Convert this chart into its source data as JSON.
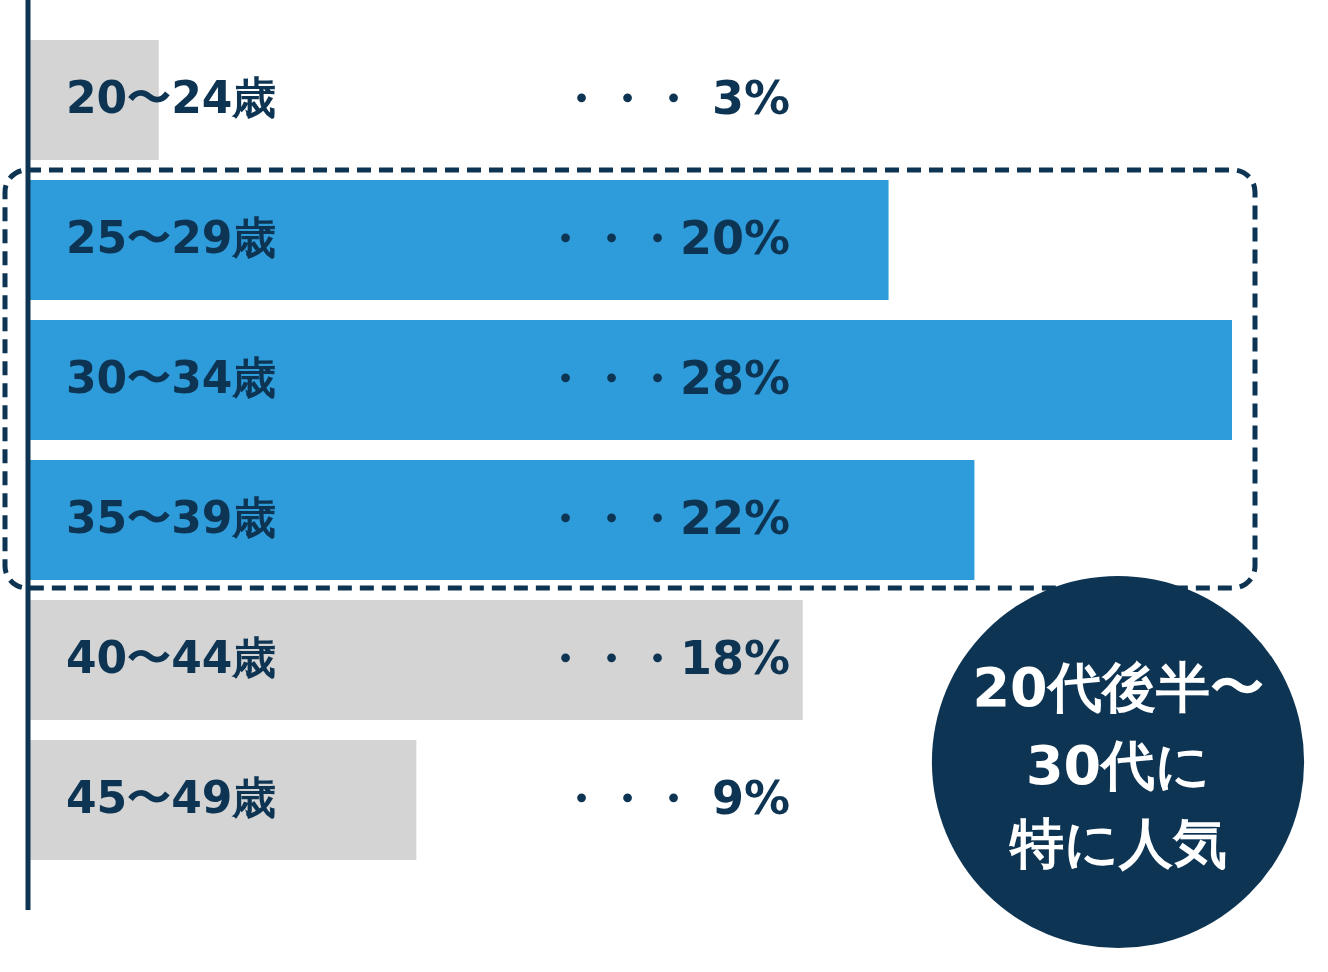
{
  "chart_data": {
    "type": "bar",
    "orientation": "horizontal",
    "categories": [
      "20〜24歳",
      "25〜29歳",
      "30〜34歳",
      "35〜39歳",
      "40〜44歳",
      "45〜49歳"
    ],
    "values": [
      3,
      20,
      28,
      22,
      18,
      9
    ],
    "colors": [
      "#d4d4d4",
      "#2e9cdb",
      "#2e9cdb",
      "#2e9cdb",
      "#d4d4d4",
      "#d4d4d4"
    ],
    "value_labels": [
      "・・・ 3%",
      "・・・20%",
      "・・・28%",
      "・・・22%",
      "・・・18%",
      "・・・ 9%"
    ],
    "annotations": [
      "20代後半〜",
      "30代に",
      "特に人気"
    ]
  }
}
